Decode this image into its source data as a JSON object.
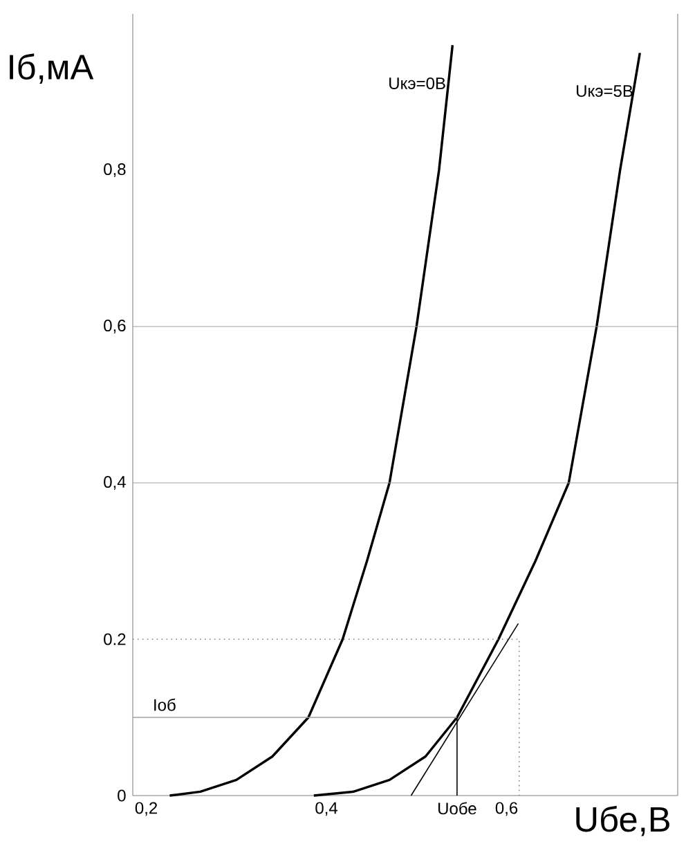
{
  "chart_data": {
    "type": "line",
    "xlabel": "Uбе,В",
    "ylabel": "Iб,мА",
    "xlim": [
      0.185,
      0.79
    ],
    "ylim": [
      0,
      1.0
    ],
    "xticks": [
      {
        "value": 0.2,
        "label": "0,2"
      },
      {
        "value": 0.4,
        "label": "0,4"
      },
      {
        "value": 0.6,
        "label": "0,6"
      }
    ],
    "yticks": [
      0,
      {
        "value": 0.2,
        "label": "0.2"
      },
      {
        "value": 0.4,
        "label": "0,4"
      },
      {
        "value": 0.6,
        "label": "0,6"
      },
      {
        "value": 0.8,
        "label": "0,8"
      }
    ],
    "marker": "none",
    "grid": false,
    "series": [
      {
        "name": "Uкэ=0В",
        "color": "#000000",
        "x": [
          0.226,
          0.26,
          0.3,
          0.34,
          0.38,
          0.418,
          0.445,
          0.47,
          0.5,
          0.525,
          0.54
        ],
        "values": [
          0,
          0.005,
          0.02,
          0.05,
          0.1,
          0.2,
          0.3,
          0.4,
          0.6,
          0.8,
          0.96
        ]
      },
      {
        "name": "Uкэ=5В",
        "color": "#000000",
        "x": [
          0.386,
          0.43,
          0.47,
          0.51,
          0.545,
          0.591,
          0.632,
          0.669,
          0.7,
          0.726,
          0.748
        ],
        "values": [
          0,
          0.005,
          0.02,
          0.05,
          0.1,
          0.2,
          0.3,
          0.4,
          0.6,
          0.8,
          0.95
        ]
      },
      {
        "color": "#000000",
        "x": [
          0.494,
          0.613
        ],
        "values": [
          0,
          0.22
        ]
      },
      {
        "color": "#808080",
        "line_style": "dotted",
        "x": [
          0.185,
          0.614,
          0.614
        ],
        "values": [
          0.2,
          0.2,
          0
        ]
      },
      {
        "color": "#a0a0a0",
        "x": [
          0.185,
          0.545
        ],
        "values": [
          0.1,
          0.1
        ]
      },
      {
        "color": "#000000",
        "x": [
          0.545,
          0.545
        ],
        "values": [
          0,
          0.1
        ]
      }
    ],
    "ref_lines": [
      {
        "axis": "y",
        "value": 0.4,
        "color": "#a0a0a0"
      },
      {
        "axis": "y",
        "value": 0.6,
        "color": "#a0a0a0"
      }
    ],
    "annotations": [
      {
        "text": "Iоб",
        "x": 0.2,
        "y": 0.1
      },
      {
        "text": "Uобе",
        "x": 0.545,
        "y": 0
      }
    ]
  }
}
